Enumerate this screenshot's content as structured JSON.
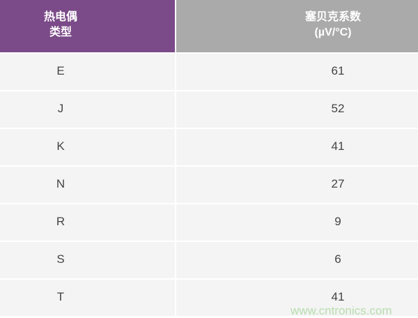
{
  "table": {
    "headers": [
      [
        "热电偶",
        "类型"
      ],
      [
        "塞贝克系数",
        "(µV/°C)"
      ]
    ],
    "rows": [
      {
        "type": "E",
        "seebeck": "61"
      },
      {
        "type": "J",
        "seebeck": "52"
      },
      {
        "type": "K",
        "seebeck": "41"
      },
      {
        "type": "N",
        "seebeck": "27"
      },
      {
        "type": "R",
        "seebeck": "9"
      },
      {
        "type": "S",
        "seebeck": "6"
      },
      {
        "type": "T",
        "seebeck": "41"
      }
    ]
  },
  "watermark": "www.cntronics.com",
  "colors": {
    "header_left": "#7b4a88",
    "header_right": "#aaaaaa",
    "row_bg": "#f4f4f4"
  }
}
